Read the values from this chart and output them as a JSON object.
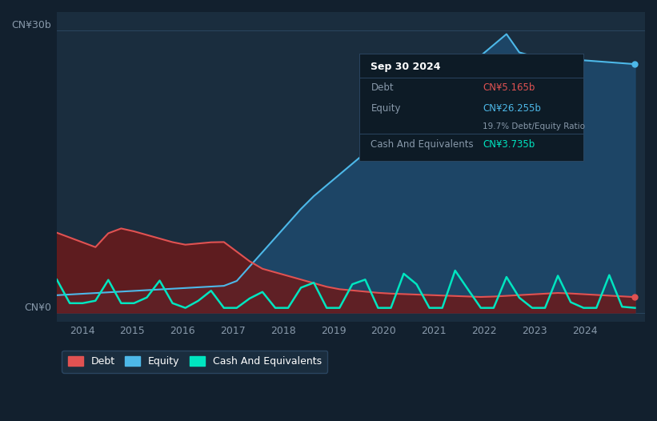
{
  "background_color": "#12202e",
  "chart_bg_color": "#1a2d3e",
  "title_box": {
    "date": "Sep 30 2024",
    "debt_label": "Debt",
    "debt_value": "CN¥5.165b",
    "equity_label": "Equity",
    "equity_value": "CN¥26.255b",
    "ratio_text": "19.7% Debt/Equity Ratio",
    "cash_label": "Cash And Equivalents",
    "cash_value": "CN¥3.735b"
  },
  "ylabel_top": "CN¥30b",
  "ylabel_bottom": "CN¥0",
  "x_ticks": [
    "2014",
    "2015",
    "2016",
    "2017",
    "2018",
    "2019",
    "2020",
    "2021",
    "2022",
    "2023",
    "2024"
  ],
  "legend": [
    {
      "label": "Debt",
      "color": "#e05252"
    },
    {
      "label": "Equity",
      "color": "#4db8e8"
    },
    {
      "label": "Cash And Equivalents",
      "color": "#00e5c0"
    }
  ],
  "debt_color": "#e05252",
  "equity_color": "#4db8e8",
  "cash_color": "#00e5c0",
  "equity_fill_color": "#1e4a6e",
  "debt_fill_color": "#6b1a1a",
  "grid_color": "#2a4560",
  "info_bg_color": "#0d1b26",
  "label_color": "#8899aa"
}
